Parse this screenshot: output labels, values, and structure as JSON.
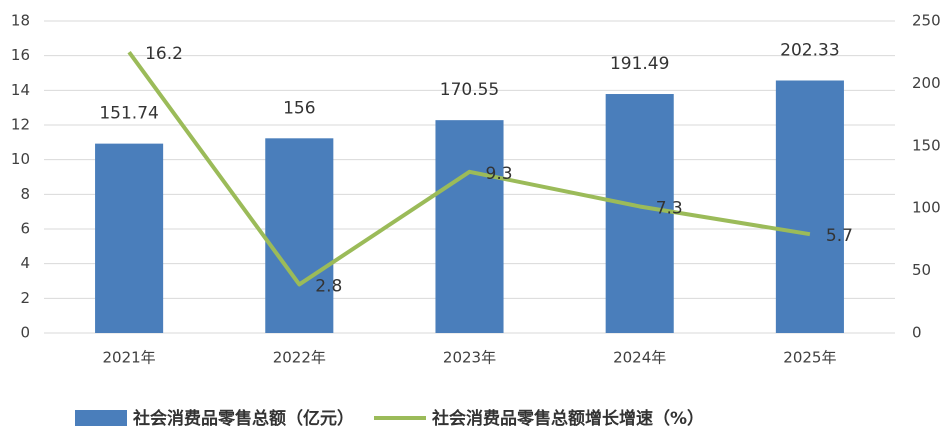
{
  "chart_data": {
    "type": "bar_line",
    "categories": [
      "2021年",
      "2022年",
      "2023年",
      "2024年",
      "2025年"
    ],
    "series": [
      {
        "name": "社会消费品零售总额（亿元）",
        "type": "bar",
        "axis": "y2",
        "color": "#4a7ebb",
        "values": [
          151.74,
          156,
          170.55,
          191.49,
          202.33
        ]
      },
      {
        "name": "社会消费品零售总额增长增速（%）",
        "type": "line",
        "axis": "y",
        "color": "#9bbb59",
        "values": [
          16.2,
          2.8,
          9.3,
          7.3,
          5.7
        ]
      }
    ],
    "ylim": [
      0,
      18
    ],
    "yticks": [
      0,
      2,
      4,
      6,
      8,
      10,
      12,
      14,
      16,
      18
    ],
    "y2lim": [
      0,
      250
    ],
    "y2ticks": [
      0,
      50,
      100,
      150,
      200,
      250
    ],
    "grid": true,
    "legend": "bottom"
  }
}
